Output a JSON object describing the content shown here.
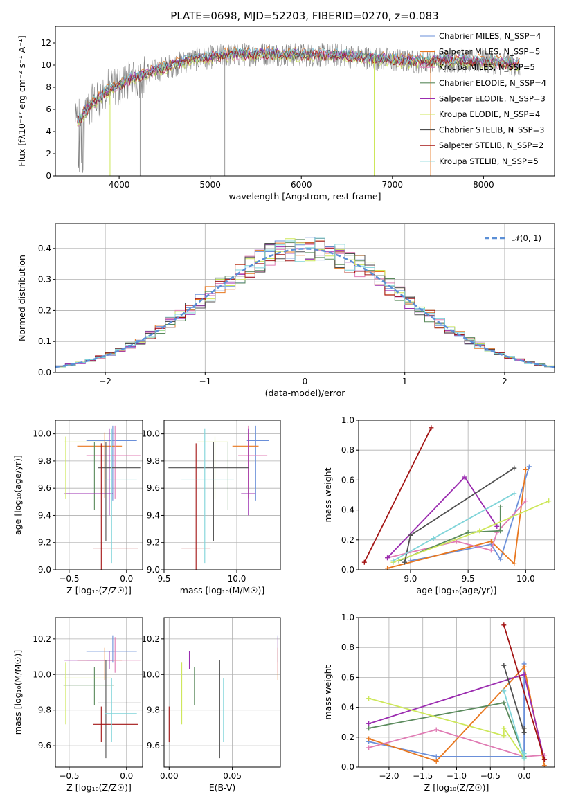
{
  "figure": {
    "title": "PLATE=0698, MJD=52203, FIBERID=0270, z=0.083"
  },
  "colors": {
    "series": [
      "#6a8fd9",
      "#e8771f",
      "#e07cb4",
      "#5a8a5c",
      "#9b2cb0",
      "#cde75a",
      "#505050",
      "#a31515",
      "#7fd4d9"
    ],
    "data_spectrum": "#808080",
    "normal": "#5b8fd6",
    "grid": "#b0b0b0"
  },
  "chart_data": [
    {
      "id": "spectrum",
      "type": "line",
      "title": "PLATE=0698, MJD=52203, FIBERID=0270, z=0.083",
      "xlabel": "wavelength [Angstrom, rest frame]",
      "ylabel": "Flux [fλ10⁻¹⁷ erg cm⁻² s⁻¹ A⁻¹]",
      "xlim": [
        3300,
        8780
      ],
      "ylim": [
        0,
        13.5
      ],
      "xticks": [
        4000,
        5000,
        6000,
        7000,
        8000
      ],
      "yticks": [
        0,
        2,
        4,
        6,
        8,
        10,
        12
      ],
      "grid": false,
      "legend_position": "right",
      "legend": [
        "Chabrier MILES, N_SSP=4",
        "Salpeter MILES, N_SSP=5",
        "Kroupa MILES, N_SSP=5",
        "Chabrier ELODIE, N_SSP=4",
        "Salpeter ELODIE, N_SSP=3",
        "Kroupa ELODIE, N_SSP=4",
        "Chabrier STELIB, N_SSP=3",
        "Salpeter STELIB, N_SSP=2",
        "Kroupa STELIB, N_SSP=5"
      ],
      "continuum": [
        [
          3550,
          5.0
        ],
        [
          3650,
          6.0
        ],
        [
          3800,
          7.2
        ],
        [
          3950,
          8.0
        ],
        [
          4150,
          8.8
        ],
        [
          4400,
          9.5
        ],
        [
          4800,
          10.5
        ],
        [
          5200,
          10.9
        ],
        [
          5600,
          11.0
        ],
        [
          6000,
          10.9
        ],
        [
          6400,
          10.9
        ],
        [
          6800,
          10.6
        ],
        [
          7200,
          10.3
        ],
        [
          7600,
          10.4
        ],
        [
          8000,
          10.3
        ],
        [
          8400,
          10.0
        ]
      ]
    },
    {
      "id": "residuals",
      "type": "line",
      "xlabel": "(data-model)/error",
      "ylabel": "Normed distribution",
      "xlim": [
        -2.5,
        2.5
      ],
      "ylim": [
        0,
        0.48
      ],
      "xticks": [
        -2,
        -1,
        0,
        1,
        2
      ],
      "yticks": [
        0.0,
        0.1,
        0.2,
        0.3,
        0.4
      ],
      "grid": true,
      "legend_position": "top-right",
      "legend": [
        "𝒩(0, 1)"
      ],
      "normal": {
        "mean": 0,
        "sigma": 1,
        "style": "dashed"
      }
    },
    {
      "id": "age-vs-Z",
      "type": "scatter",
      "xlabel": "Z [log₁₀(Z/Z☉)]",
      "ylabel": "age  [log₁₀(age/yr)]",
      "xlim": [
        -0.62,
        0.14
      ],
      "ylim": [
        9.0,
        10.1
      ],
      "xticks": [
        -0.5,
        0.0
      ],
      "yticks": [
        9.0,
        9.2,
        9.4,
        9.6,
        9.8,
        10.0
      ],
      "grid": true,
      "points": [
        {
          "x": -0.12,
          "y": 9.95,
          "xerr": [
            0.23,
            0.21
          ],
          "yerr": [
            0.44,
            0.11
          ]
        },
        {
          "x": -0.19,
          "y": 9.91,
          "xerr": [
            0.24,
            0.15
          ],
          "yerr": [
            0.38,
            0.1
          ]
        },
        {
          "x": -0.1,
          "y": 9.84,
          "xerr": [
            0.25,
            0.22
          ],
          "yerr": [
            0.32,
            0.22
          ]
        },
        {
          "x": -0.28,
          "y": 9.69,
          "xerr": [
            0.27,
            0.17
          ],
          "yerr": [
            0.25,
            0.25
          ]
        },
        {
          "x": -0.15,
          "y": 9.56,
          "xerr": [
            0.39,
            0.03
          ],
          "yerr": [
            0.16,
            0.48
          ]
        },
        {
          "x": -0.53,
          "y": 9.94,
          "xerr": [
            0.01,
            0.4
          ],
          "yerr": [
            0.42,
            0.04
          ]
        },
        {
          "x": -0.18,
          "y": 9.75,
          "xerr": [
            0.07,
            0.3
          ],
          "yerr": [
            0.54,
            0.19
          ]
        },
        {
          "x": -0.22,
          "y": 9.16,
          "xerr": [
            0.07,
            0.32
          ],
          "yerr": [
            0.16,
            0.77
          ]
        },
        {
          "x": -0.13,
          "y": 9.66,
          "xerr": [
            0.06,
            0.22
          ],
          "yerr": [
            0.61,
            0.38
          ]
        }
      ]
    },
    {
      "id": "age-vs-mass",
      "type": "scatter",
      "xlabel": "mass [log₁₀(M/M☉)]",
      "ylabel": "",
      "xlim": [
        9.5,
        10.3
      ],
      "ylim": [
        9.0,
        10.1
      ],
      "xticks": [
        9.5,
        10.0
      ],
      "yticks": [
        9.0,
        9.2,
        9.4,
        9.6,
        9.8,
        10.0
      ],
      "grid": true,
      "points": [
        {
          "x": 10.13,
          "y": 9.95,
          "xerr": [
            0.06,
            0.09
          ],
          "yerr": [
            0.44,
            0.11
          ]
        },
        {
          "x": 10.08,
          "y": 9.91,
          "xerr": [
            0.11,
            0.07
          ],
          "yerr": [
            0.38,
            0.1
          ]
        },
        {
          "x": 10.08,
          "y": 9.84,
          "xerr": [
            0.07,
            0.13
          ],
          "yerr": [
            0.32,
            0.22
          ]
        },
        {
          "x": 9.94,
          "y": 9.69,
          "xerr": [
            0.11,
            0.1
          ],
          "yerr": [
            0.25,
            0.25
          ]
        },
        {
          "x": 10.08,
          "y": 9.56,
          "xerr": [
            0.05,
            0.05
          ],
          "yerr": [
            0.16,
            0.48
          ]
        },
        {
          "x": 9.85,
          "y": 9.94,
          "xerr": [
            0.12,
            0.09
          ],
          "yerr": [
            0.42,
            0.04
          ]
        },
        {
          "x": 9.84,
          "y": 9.75,
          "xerr": [
            0.31,
            0.24
          ],
          "yerr": [
            0.54,
            0.19
          ]
        },
        {
          "x": 9.72,
          "y": 9.16,
          "xerr": [
            0.1,
            0.1
          ],
          "yerr": [
            0.16,
            0.77
          ]
        },
        {
          "x": 9.78,
          "y": 9.66,
          "xerr": [
            0.16,
            0.2
          ],
          "yerr": [
            0.61,
            0.38
          ]
        }
      ]
    },
    {
      "id": "weight-vs-age",
      "type": "line",
      "xlabel": "age  [log₁₀(age/yr)]",
      "ylabel": "mass weight",
      "xlim": [
        8.55,
        10.25
      ],
      "ylim": [
        0,
        1.0
      ],
      "xticks": [
        9.0,
        9.5,
        10.0
      ],
      "yticks": [
        0.0,
        0.2,
        0.4,
        0.6,
        0.8,
        1.0
      ],
      "grid": true,
      "series": [
        {
          "x": [
            9.0,
            9.7,
            9.78,
            10.03
          ],
          "y": [
            0.06,
            0.17,
            0.07,
            0.69
          ]
        },
        {
          "x": [
            8.8,
            9.7,
            9.9,
            10.0
          ],
          "y": [
            0.01,
            0.19,
            0.04,
            0.67
          ]
        },
        {
          "x": [
            8.8,
            9.4,
            9.7,
            9.75,
            10.0
          ],
          "y": [
            0.08,
            0.19,
            0.13,
            0.25,
            0.46
          ]
        },
        {
          "x": [
            8.9,
            9.5,
            9.78,
            9.78
          ],
          "y": [
            0.06,
            0.25,
            0.26,
            0.42
          ]
        },
        {
          "x": [
            8.8,
            9.47,
            9.75
          ],
          "y": [
            0.08,
            0.62,
            0.29
          ]
        },
        {
          "x": [
            8.85,
            9.6,
            10.2
          ],
          "y": [
            0.05,
            0.26,
            0.46
          ]
        },
        {
          "x": [
            8.95,
            9.0,
            9.9
          ],
          "y": [
            0.05,
            0.23,
            0.68
          ]
        },
        {
          "x": [
            8.6,
            9.18
          ],
          "y": [
            0.05,
            0.95
          ]
        },
        {
          "x": [
            8.85,
            9.2,
            9.9
          ],
          "y": [
            0.06,
            0.21,
            0.51
          ]
        }
      ]
    },
    {
      "id": "mass-vs-Z",
      "type": "scatter",
      "xlabel": "Z [log₁₀(Z/Z☉)]",
      "ylabel": "mass [log₁₀(M/M☉)]",
      "xlim": [
        -0.62,
        0.14
      ],
      "ylim": [
        9.48,
        10.32
      ],
      "xticks": [
        -0.5,
        0.0
      ],
      "yticks": [
        9.6,
        9.8,
        10.0,
        10.2
      ],
      "grid": true,
      "points": [
        {
          "x": -0.12,
          "y": 10.13,
          "xerr": [
            0.23,
            0.21
          ],
          "yerr": [
            0.06,
            0.09
          ]
        },
        {
          "x": -0.19,
          "y": 10.08,
          "xerr": [
            0.24,
            0.15
          ],
          "yerr": [
            0.11,
            0.07
          ]
        },
        {
          "x": -0.1,
          "y": 10.08,
          "xerr": [
            0.25,
            0.22
          ],
          "yerr": [
            0.07,
            0.13
          ]
        },
        {
          "x": -0.28,
          "y": 9.94,
          "xerr": [
            0.27,
            0.17
          ],
          "yerr": [
            0.11,
            0.1
          ]
        },
        {
          "x": -0.15,
          "y": 10.08,
          "xerr": [
            0.39,
            0.03
          ],
          "yerr": [
            0.05,
            0.05
          ]
        },
        {
          "x": -0.53,
          "y": 9.98,
          "xerr": [
            0.01,
            0.4
          ],
          "yerr": [
            0.26,
            0.09
          ]
        },
        {
          "x": -0.18,
          "y": 9.84,
          "xerr": [
            0.07,
            0.3
          ],
          "yerr": [
            0.31,
            0.24
          ]
        },
        {
          "x": -0.22,
          "y": 9.72,
          "xerr": [
            0.07,
            0.32
          ],
          "yerr": [
            0.1,
            0.1
          ]
        },
        {
          "x": -0.13,
          "y": 9.78,
          "xerr": [
            0.06,
            0.22
          ],
          "yerr": [
            0.16,
            0.2
          ]
        }
      ]
    },
    {
      "id": "mass-vs-EBV",
      "type": "scatter",
      "xlabel": "E(B-V)",
      "ylabel": "",
      "xlim": [
        -0.004,
        0.088
      ],
      "ylim": [
        9.48,
        10.32
      ],
      "xticks": [
        0.0,
        0.05
      ],
      "yticks": [
        9.6,
        9.8,
        10.0,
        10.2
      ],
      "grid": true,
      "points": [
        {
          "x": 0.086,
          "y": 10.13,
          "xerr": [
            0,
            0
          ],
          "yerr": [
            0.06,
            0.09
          ]
        },
        {
          "x": 0.086,
          "y": 10.08,
          "xerr": [
            0,
            0
          ],
          "yerr": [
            0.11,
            0.07
          ]
        },
        {
          "x": 0.086,
          "y": 10.08,
          "xerr": [
            0,
            0
          ],
          "yerr": [
            0.07,
            0.13
          ]
        },
        {
          "x": 0.02,
          "y": 9.94,
          "xerr": [
            0,
            0
          ],
          "yerr": [
            0.11,
            0.1
          ]
        },
        {
          "x": 0.016,
          "y": 10.08,
          "xerr": [
            0,
            0
          ],
          "yerr": [
            0.05,
            0.05
          ]
        },
        {
          "x": 0.01,
          "y": 9.98,
          "xerr": [
            0,
            0
          ],
          "yerr": [
            0.26,
            0.09
          ]
        },
        {
          "x": 0.04,
          "y": 9.84,
          "xerr": [
            0,
            0
          ],
          "yerr": [
            0.31,
            0.24
          ]
        },
        {
          "x": 0.0,
          "y": 9.72,
          "xerr": [
            0,
            0
          ],
          "yerr": [
            0.1,
            0.1
          ]
        },
        {
          "x": 0.043,
          "y": 9.78,
          "xerr": [
            0,
            0
          ],
          "yerr": [
            0.16,
            0.2
          ]
        }
      ]
    },
    {
      "id": "weight-vs-Z",
      "type": "line",
      "xlabel": "Z [log₁₀(Z/Z☉)]",
      "ylabel": "mass weight",
      "xlim": [
        -2.45,
        0.45
      ],
      "ylim": [
        0,
        1.0
      ],
      "xticks": [
        -2.0,
        -1.5,
        -1.0,
        -0.5,
        0.0
      ],
      "yticks": [
        0.0,
        0.2,
        0.4,
        0.6,
        0.8,
        1.0
      ],
      "grid": true,
      "series": [
        {
          "x": [
            -2.3,
            -1.3,
            0.0,
            0.0
          ],
          "y": [
            0.17,
            0.07,
            0.07,
            0.69
          ]
        },
        {
          "x": [
            -2.3,
            -1.3,
            0.0,
            0.3
          ],
          "y": [
            0.19,
            0.04,
            0.67,
            0.01
          ]
        },
        {
          "x": [
            -2.3,
            -1.3,
            0.0,
            0.3
          ],
          "y": [
            0.13,
            0.25,
            0.07,
            0.08
          ]
        },
        {
          "x": [
            -2.3,
            -0.3,
            0.0
          ],
          "y": [
            0.26,
            0.43,
            0.07
          ]
        },
        {
          "x": [
            -2.3,
            0.0,
            0.3
          ],
          "y": [
            0.29,
            0.62,
            0.05
          ]
        },
        {
          "x": [
            -2.3,
            -0.3,
            -0.3,
            0.0
          ],
          "y": [
            0.46,
            0.21,
            0.26,
            0.06
          ]
        },
        {
          "x": [
            -0.3,
            0.0,
            0.0
          ],
          "y": [
            0.68,
            0.23,
            0.26
          ]
        },
        {
          "x": [
            -0.3,
            0.3
          ],
          "y": [
            0.95,
            0.05
          ]
        },
        {
          "x": [
            -0.3,
            0.0,
            0.0
          ],
          "y": [
            0.51,
            0.06,
            0.09
          ]
        }
      ]
    }
  ]
}
